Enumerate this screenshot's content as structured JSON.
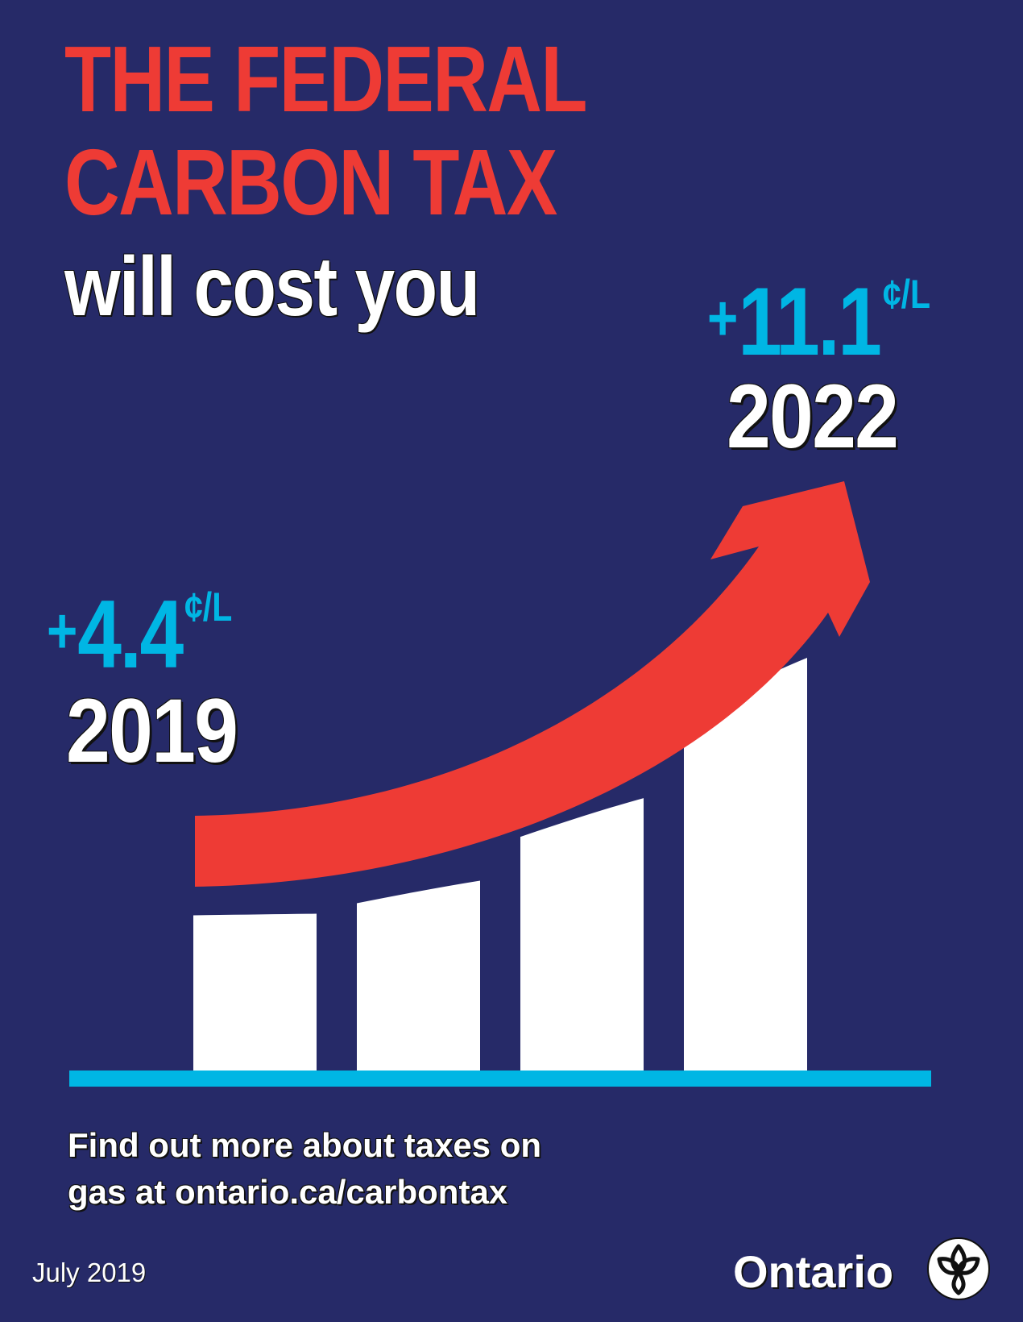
{
  "headline": {
    "line1": "THE FEDERAL",
    "line2": "CARBON TAX",
    "line3": "will cost you"
  },
  "start": {
    "plus": "+",
    "value": "4.4",
    "unit": "¢/L",
    "year": "2019"
  },
  "end": {
    "plus": "+",
    "value": "11.1",
    "unit": "¢/L",
    "year": "2022"
  },
  "bars": {
    "count": 4,
    "relative_heights": [
      0.38,
      0.46,
      0.66,
      1.0
    ]
  },
  "footer": {
    "line1": "Find out more about taxes on",
    "line2": "gas at ontario.ca/carbontax"
  },
  "date": "July 2019",
  "logo": {
    "wordmark": "Ontario",
    "icon": "trillium-icon"
  },
  "colors": {
    "background": "#262a68",
    "red": "#ee3b35",
    "blue": "#00b6e4",
    "white": "#ffffff"
  }
}
